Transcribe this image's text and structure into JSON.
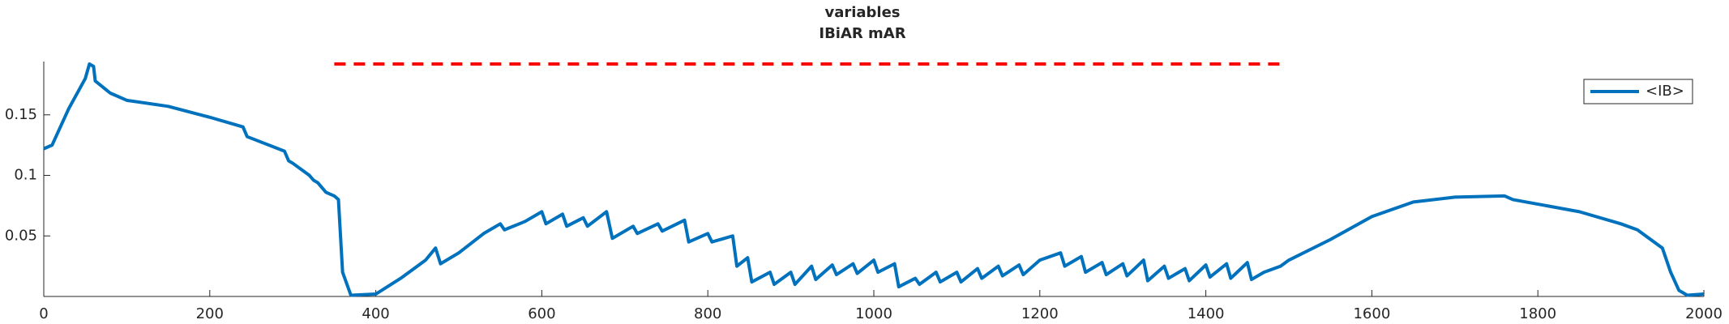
{
  "chart_data": {
    "type": "line",
    "title": "variables",
    "subtitle": "IBiAR mAR",
    "xlim": [
      0,
      2000
    ],
    "xticks": [
      0,
      200,
      400,
      600,
      800,
      1000,
      1200,
      1400,
      1600,
      1800,
      2000
    ],
    "ylim": [
      0,
      0.194
    ],
    "yticks": [
      0.05,
      0.1,
      0.15
    ],
    "legend": "northeast",
    "series": [
      {
        "name": "<IB>",
        "color": "#0072bd",
        "dash": false,
        "x": [
          0,
          10,
          30,
          50,
          55,
          60,
          62,
          80,
          100,
          150,
          200,
          230,
          240,
          245,
          290,
          295,
          300,
          320,
          325,
          330,
          340,
          350,
          355,
          360,
          370,
          400,
          430,
          460,
          472,
          478,
          500,
          530,
          550,
          555,
          580,
          600,
          605,
          625,
          630,
          650,
          655,
          678,
          685,
          710,
          715,
          740,
          745,
          772,
          777,
          800,
          805,
          830,
          835,
          848,
          853,
          875,
          880,
          900,
          905,
          925,
          930,
          950,
          955,
          975,
          980,
          1000,
          1005,
          1025,
          1030,
          1050,
          1055,
          1075,
          1080,
          1100,
          1105,
          1125,
          1130,
          1150,
          1155,
          1175,
          1180,
          1200,
          1225,
          1230,
          1250,
          1255,
          1275,
          1280,
          1300,
          1305,
          1325,
          1330,
          1350,
          1355,
          1375,
          1380,
          1400,
          1405,
          1425,
          1430,
          1450,
          1455,
          1470,
          1490,
          1500,
          1550,
          1600,
          1650,
          1700,
          1760,
          1770,
          1850,
          1900,
          1920,
          1950,
          1960,
          1970,
          1980,
          2000
        ],
        "values": [
          0.122,
          0.125,
          0.155,
          0.18,
          0.192,
          0.19,
          0.178,
          0.168,
          0.162,
          0.157,
          0.148,
          0.142,
          0.14,
          0.132,
          0.12,
          0.112,
          0.11,
          0.1,
          0.096,
          0.094,
          0.086,
          0.083,
          0.08,
          0.02,
          0.001,
          0.002,
          0.015,
          0.03,
          0.04,
          0.027,
          0.036,
          0.052,
          0.06,
          0.055,
          0.062,
          0.07,
          0.06,
          0.068,
          0.058,
          0.065,
          0.058,
          0.07,
          0.048,
          0.058,
          0.052,
          0.06,
          0.054,
          0.063,
          0.045,
          0.052,
          0.045,
          0.05,
          0.025,
          0.032,
          0.012,
          0.02,
          0.01,
          0.02,
          0.01,
          0.025,
          0.014,
          0.026,
          0.018,
          0.027,
          0.019,
          0.03,
          0.02,
          0.027,
          0.008,
          0.015,
          0.01,
          0.02,
          0.012,
          0.02,
          0.012,
          0.023,
          0.015,
          0.025,
          0.017,
          0.026,
          0.018,
          0.03,
          0.036,
          0.025,
          0.033,
          0.02,
          0.028,
          0.018,
          0.027,
          0.017,
          0.03,
          0.013,
          0.025,
          0.015,
          0.023,
          0.013,
          0.026,
          0.016,
          0.027,
          0.015,
          0.028,
          0.014,
          0.02,
          0.025,
          0.03,
          0.047,
          0.066,
          0.078,
          0.082,
          0.083,
          0.08,
          0.07,
          0.06,
          0.055,
          0.04,
          0.02,
          0.005,
          0.001,
          0.002
        ]
      },
      {
        "color": "#ff0000",
        "dash": true,
        "x": [
          350,
          1490
        ],
        "values": [
          0.192,
          0.192
        ]
      }
    ]
  }
}
